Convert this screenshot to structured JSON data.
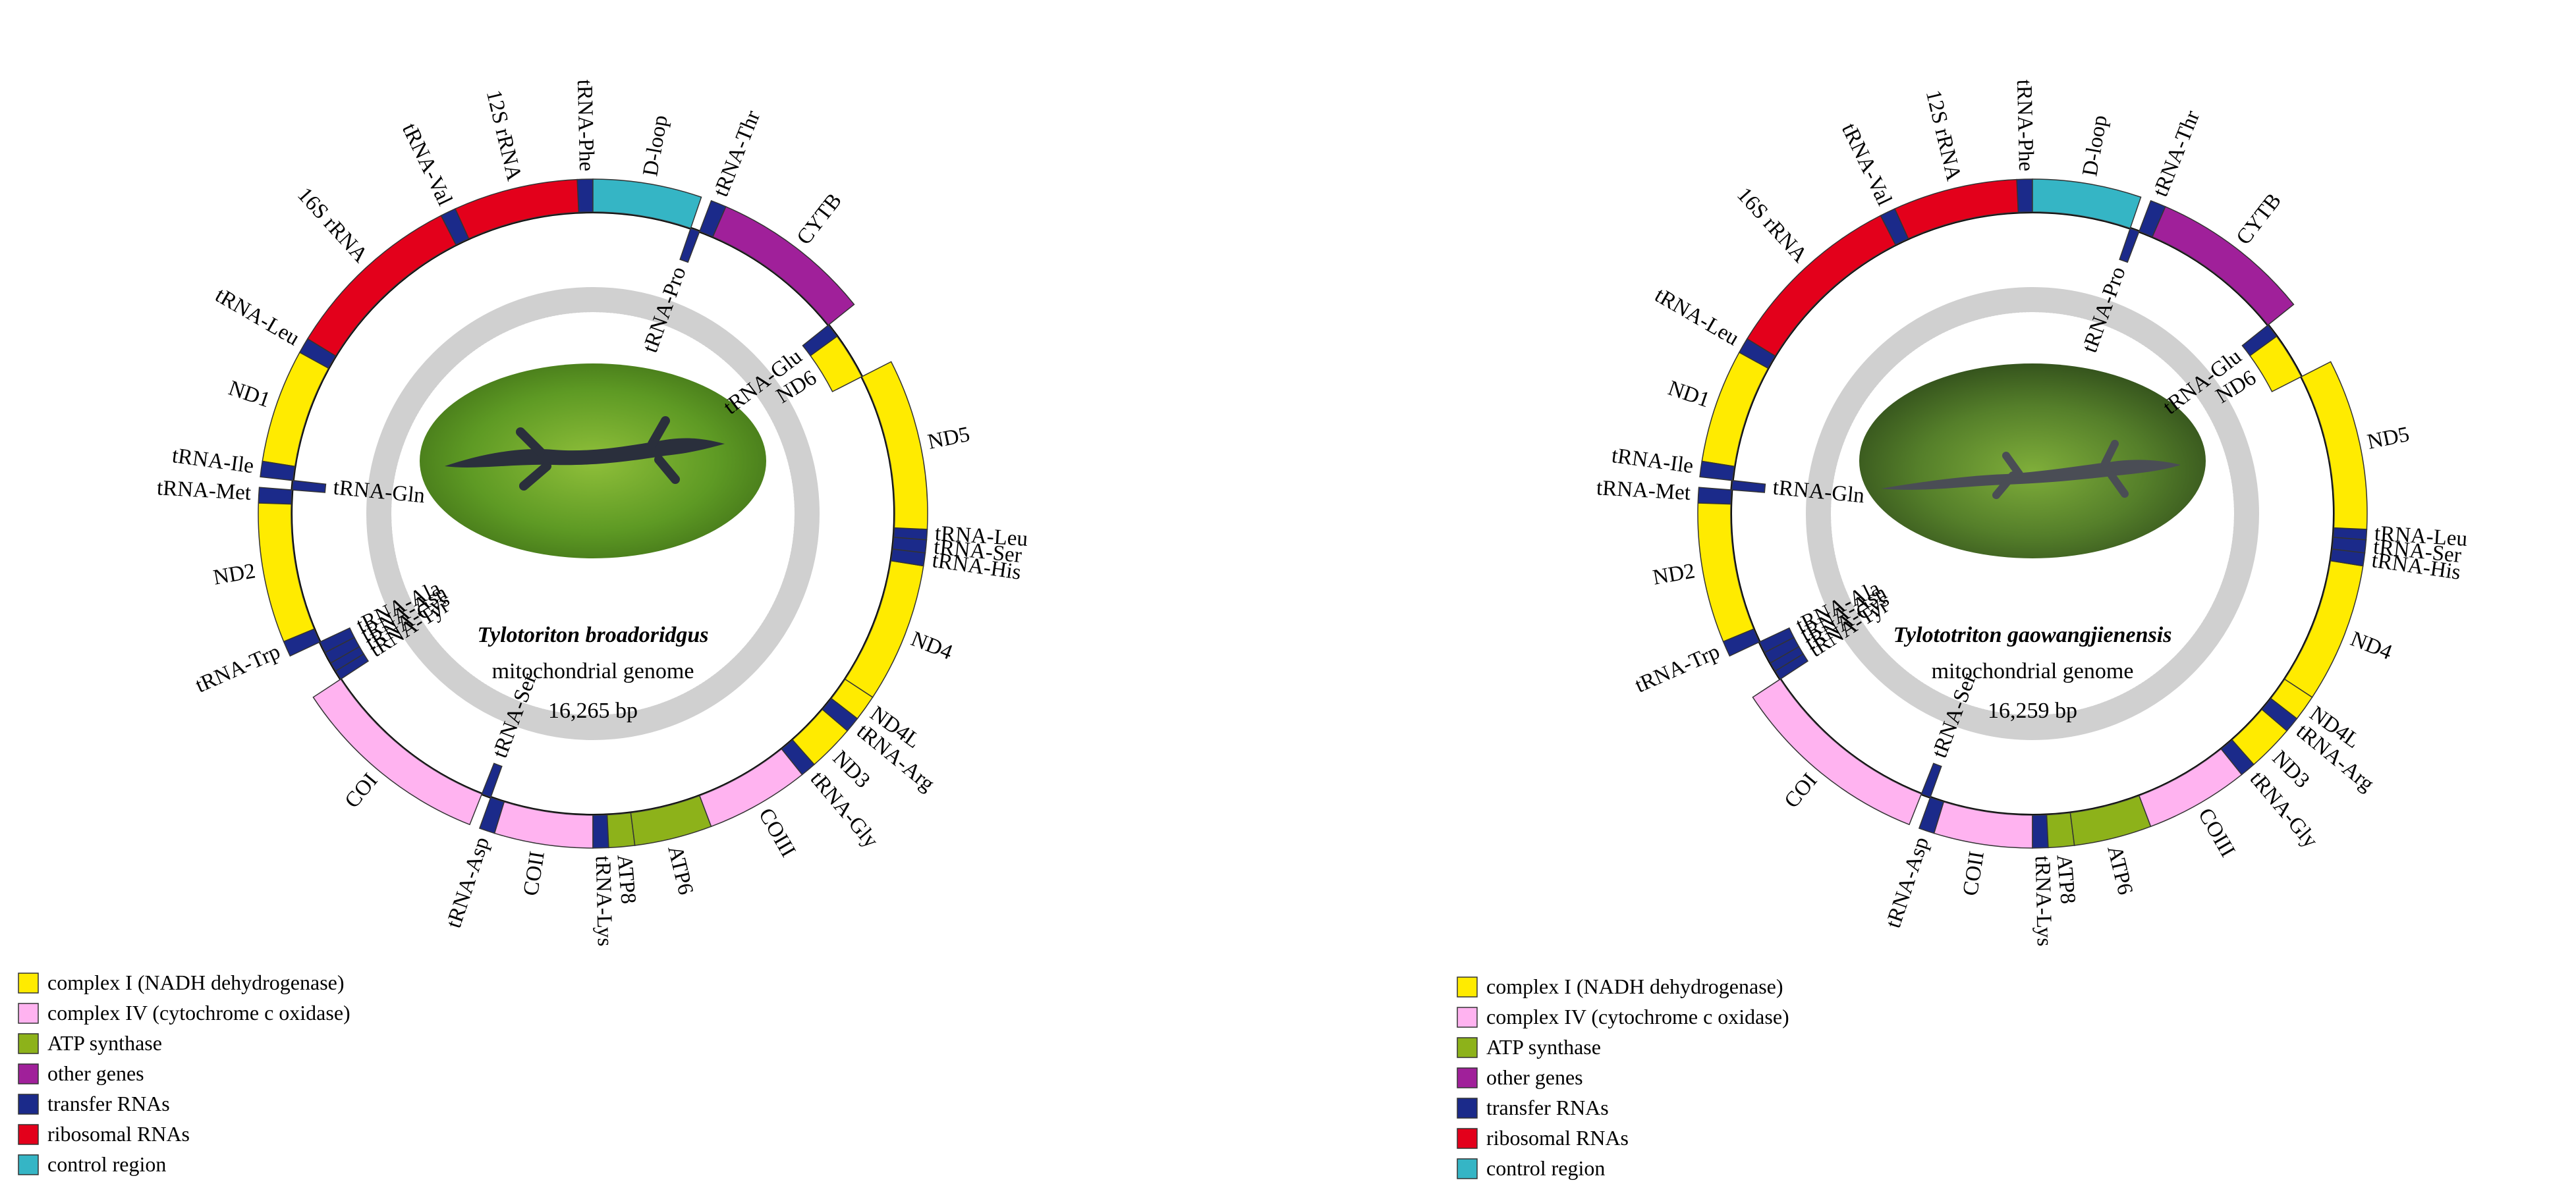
{
  "colors": {
    "complex_I": "#FFEB00",
    "complex_IV": "#FFB3F0",
    "atp": "#8DB21A",
    "other": "#A0209A",
    "trna": "#1B2A8A",
    "rrna": "#E3001B",
    "control": "#35B5C5"
  },
  "legend": [
    {
      "key": "complex_I",
      "label": "complex I (NADH dehydrogenase)"
    },
    {
      "key": "complex_IV",
      "label": "complex IV (cytochrome c oxidase)"
    },
    {
      "key": "atp",
      "label": "ATP synthase"
    },
    {
      "key": "other",
      "label": "other genes"
    },
    {
      "key": "trna",
      "label": "transfer RNAs"
    },
    {
      "key": "rrna",
      "label": "ribosomal RNAs"
    },
    {
      "key": "control",
      "label": "control region"
    }
  ],
  "genomes": [
    {
      "species": "Tylotoriton broadoridgus",
      "subtitle": "mitochondrial genome",
      "size": "16,265 bp",
      "photo_alt": "salamander photo",
      "genes": [
        {
          "name": "tRNA-Phe",
          "start": 0,
          "end": 3,
          "strand": "H",
          "cat": "trna"
        },
        {
          "name": "12S rRNA",
          "start": 3,
          "end": 27,
          "strand": "H",
          "cat": "rrna"
        },
        {
          "name": "tRNA-Val",
          "start": 27,
          "end": 30,
          "strand": "H",
          "cat": "trna"
        },
        {
          "name": "16S rRNA",
          "start": 30,
          "end": 65,
          "strand": "H",
          "cat": "rrna"
        },
        {
          "name": "tRNA-Leu",
          "start": 65,
          "end": 68,
          "strand": "H",
          "cat": "trna"
        },
        {
          "name": "ND1",
          "start": 68,
          "end": 90,
          "strand": "H",
          "cat": "complex_I"
        },
        {
          "name": "tRNA-Ile",
          "start": 90,
          "end": 93,
          "strand": "H",
          "cat": "trna"
        },
        {
          "name": "tRNA-Gln",
          "start": 93,
          "end": 95,
          "strand": "L",
          "cat": "trna"
        },
        {
          "name": "tRNA-Met",
          "start": 95,
          "end": 98,
          "strand": "H",
          "cat": "trna"
        },
        {
          "name": "ND2",
          "start": 98,
          "end": 125,
          "strand": "H",
          "cat": "complex_I"
        },
        {
          "name": "tRNA-Trp",
          "start": 125,
          "end": 128,
          "strand": "H",
          "cat": "trna"
        },
        {
          "name": "tRNA-Ala",
          "start": 128,
          "end": 130.5,
          "strand": "L",
          "cat": "trna"
        },
        {
          "name": "tRNA-Asn",
          "start": 130.5,
          "end": 133,
          "strand": "L",
          "cat": "trna"
        },
        {
          "name": "tRNA-Cys",
          "start": 133,
          "end": 135,
          "strand": "L",
          "cat": "trna"
        },
        {
          "name": "tRNA-Tyr",
          "start": 135,
          "end": 137,
          "strand": "L",
          "cat": "trna"
        },
        {
          "name": "COI",
          "start": 137,
          "end": 176,
          "strand": "H",
          "cat": "complex_IV"
        },
        {
          "name": "tRNA-Ser",
          "start": 176,
          "end": 178,
          "strand": "L",
          "cat": "trna"
        },
        {
          "name": "tRNA-Asp",
          "start": 178,
          "end": 181,
          "strand": "H",
          "cat": "trna"
        },
        {
          "name": "COII",
          "start": 181,
          "end": 200,
          "strand": "H",
          "cat": "complex_IV"
        },
        {
          "name": "tRNA-Lys",
          "start": 200,
          "end": 203,
          "strand": "H",
          "cat": "trna"
        },
        {
          "name": "ATP8",
          "start": 203,
          "end": 208,
          "strand": "H",
          "cat": "atp"
        },
        {
          "name": "ATP6",
          "start": 208,
          "end": 223,
          "strand": "H",
          "cat": "atp"
        },
        {
          "name": "COIII",
          "start": 223,
          "end": 243,
          "strand": "H",
          "cat": "complex_IV"
        },
        {
          "name": "tRNA-Gly",
          "start": 243,
          "end": 246,
          "strand": "H",
          "cat": "trna"
        },
        {
          "name": "ND3",
          "start": 246,
          "end": 255,
          "strand": "H",
          "cat": "complex_I"
        },
        {
          "name": "tRNA-Arg",
          "start": 255,
          "end": 258,
          "strand": "H",
          "cat": "trna"
        },
        {
          "name": "ND4L",
          "start": 258,
          "end": 263,
          "strand": "H",
          "cat": "complex_I"
        },
        {
          "name": "ND4",
          "start": 263,
          "end": 290,
          "strand": "H",
          "cat": "complex_I"
        },
        {
          "name": "tRNA-His",
          "start": 290,
          "end": 292.5,
          "strand": "H",
          "cat": "trna"
        },
        {
          "name": "tRNA-Ser",
          "start": 292.5,
          "end": 295,
          "strand": "H",
          "cat": "trna"
        },
        {
          "name": "tRNA-Leu",
          "start": 295,
          "end": 297,
          "strand": "H",
          "cat": "trna"
        },
        {
          "name": "ND5",
          "start": 297,
          "end": 330,
          "strand": "H",
          "cat": "complex_I"
        },
        {
          "name": "ND6",
          "start": 330,
          "end": 340,
          "strand": "L",
          "cat": "complex_I"
        },
        {
          "name": "tRNA-Glu",
          "start": 340,
          "end": 343,
          "strand": "L",
          "cat": "trna"
        },
        {
          "name": "CYTB",
          "start": 343,
          "end": 374,
          "strand": "H",
          "cat": "other"
        },
        {
          "name": "tRNA-Thr",
          "start": 374,
          "end": 377,
          "strand": "H",
          "cat": "trna"
        },
        {
          "name": "tRNA-Pro",
          "start": 377,
          "end": 379,
          "strand": "L",
          "cat": "trna"
        },
        {
          "name": "D-loop",
          "start": 379,
          "end": 400,
          "strand": "H",
          "cat": "control"
        }
      ],
      "labels": [
        {
          "text": "tRNA-Phe",
          "pos": 1.5,
          "side": "out"
        },
        {
          "text": "12S rRNA",
          "pos": 15,
          "side": "out"
        },
        {
          "text": "tRNA-Val",
          "pos": 28.5,
          "side": "out"
        },
        {
          "text": "16S rRNA",
          "pos": 47,
          "side": "out"
        },
        {
          "text": "tRNA-Leu",
          "pos": 66.5,
          "side": "out"
        },
        {
          "text": "ND1",
          "pos": 79,
          "side": "out"
        },
        {
          "text": "tRNA-Ile",
          "pos": 91.5,
          "side": "out"
        },
        {
          "text": "tRNA-Gln",
          "pos": 94,
          "side": "in"
        },
        {
          "text": "tRNA-Met",
          "pos": 96.5,
          "side": "out"
        },
        {
          "text": "ND2",
          "pos": 111,
          "side": "out"
        },
        {
          "text": "tRNA-Trp",
          "pos": 126.5,
          "side": "out"
        },
        {
          "text": "tRNA-Ala",
          "pos": 129,
          "side": "in"
        },
        {
          "text": "tRNA-Asn",
          "pos": 131.5,
          "side": "in"
        },
        {
          "text": "tRNA-Cys",
          "pos": 134,
          "side": "in"
        },
        {
          "text": "tRNA-Tyr",
          "pos": 136,
          "side": "in"
        },
        {
          "text": "COI",
          "pos": 156,
          "side": "out"
        },
        {
          "text": "tRNA-Ser",
          "pos": 177,
          "side": "in"
        },
        {
          "text": "tRNA-Asp",
          "pos": 179.5,
          "side": "out"
        },
        {
          "text": "COII",
          "pos": 190,
          "side": "out"
        },
        {
          "text": "tRNA-Lys",
          "pos": 201.5,
          "side": "out"
        },
        {
          "text": "ATP8",
          "pos": 205.5,
          "side": "out"
        },
        {
          "text": "ATP6",
          "pos": 215,
          "side": "out"
        },
        {
          "text": "COIII",
          "pos": 233,
          "side": "out"
        },
        {
          "text": "tRNA-Gly",
          "pos": 244.5,
          "side": "out"
        },
        {
          "text": "ND3",
          "pos": 250,
          "side": "out"
        },
        {
          "text": "tRNA-Arg",
          "pos": 256.5,
          "side": "out"
        },
        {
          "text": "ND4L",
          "pos": 260.5,
          "side": "out"
        },
        {
          "text": "ND4",
          "pos": 276,
          "side": "out"
        },
        {
          "text": "tRNA-His",
          "pos": 291,
          "side": "out"
        },
        {
          "text": "tRNA-Ser",
          "pos": 293.5,
          "side": "out"
        },
        {
          "text": "tRNA-Leu",
          "pos": 296,
          "side": "out"
        },
        {
          "text": "ND5",
          "pos": 313,
          "side": "out"
        },
        {
          "text": "ND6",
          "pos": 335,
          "side": "in"
        },
        {
          "text": "tRNA-Glu",
          "pos": 341.5,
          "side": "in"
        },
        {
          "text": "CYTB",
          "pos": 358,
          "side": "out"
        },
        {
          "text": "tRNA-Thr",
          "pos": 375.5,
          "side": "out"
        },
        {
          "text": "tRNA-Pro",
          "pos": 378,
          "side": "in"
        },
        {
          "text": "D-loop",
          "pos": 389,
          "side": "out"
        }
      ]
    },
    {
      "species": "Tylototriton gaowangjienensis",
      "subtitle": "mitochondrial genome",
      "size": "16,259 bp",
      "photo_alt": "salamander photo",
      "genes": [
        {
          "name": "tRNA-Phe",
          "start": 0,
          "end": 3,
          "strand": "H",
          "cat": "trna"
        },
        {
          "name": "12S rRNA",
          "start": 3,
          "end": 27,
          "strand": "H",
          "cat": "rrna"
        },
        {
          "name": "tRNA-Val",
          "start": 27,
          "end": 30,
          "strand": "H",
          "cat": "trna"
        },
        {
          "name": "16S rRNA",
          "start": 30,
          "end": 65,
          "strand": "H",
          "cat": "rrna"
        },
        {
          "name": "tRNA-Leu",
          "start": 65,
          "end": 68,
          "strand": "H",
          "cat": "trna"
        },
        {
          "name": "ND1",
          "start": 68,
          "end": 90,
          "strand": "H",
          "cat": "complex_I"
        },
        {
          "name": "tRNA-Ile",
          "start": 90,
          "end": 93,
          "strand": "H",
          "cat": "trna"
        },
        {
          "name": "tRNA-Gln",
          "start": 93,
          "end": 95,
          "strand": "L",
          "cat": "trna"
        },
        {
          "name": "tRNA-Met",
          "start": 95,
          "end": 98,
          "strand": "H",
          "cat": "trna"
        },
        {
          "name": "ND2",
          "start": 98,
          "end": 125,
          "strand": "H",
          "cat": "complex_I"
        },
        {
          "name": "tRNA-Trp",
          "start": 125,
          "end": 128,
          "strand": "H",
          "cat": "trna"
        },
        {
          "name": "tRNA-Ala",
          "start": 128,
          "end": 130.5,
          "strand": "L",
          "cat": "trna"
        },
        {
          "name": "tRNA-Asn",
          "start": 130.5,
          "end": 133,
          "strand": "L",
          "cat": "trna"
        },
        {
          "name": "tRNA-Cys",
          "start": 133,
          "end": 135,
          "strand": "L",
          "cat": "trna"
        },
        {
          "name": "tRNA-Tyr",
          "start": 135,
          "end": 137,
          "strand": "L",
          "cat": "trna"
        },
        {
          "name": "COI",
          "start": 137,
          "end": 176,
          "strand": "H",
          "cat": "complex_IV"
        },
        {
          "name": "tRNA-Ser",
          "start": 176,
          "end": 178,
          "strand": "L",
          "cat": "trna"
        },
        {
          "name": "tRNA-Asp",
          "start": 178,
          "end": 181,
          "strand": "H",
          "cat": "trna"
        },
        {
          "name": "COII",
          "start": 181,
          "end": 200,
          "strand": "H",
          "cat": "complex_IV"
        },
        {
          "name": "tRNA-Lys",
          "start": 200,
          "end": 203,
          "strand": "H",
          "cat": "trna"
        },
        {
          "name": "ATP8",
          "start": 203,
          "end": 208,
          "strand": "H",
          "cat": "atp"
        },
        {
          "name": "ATP6",
          "start": 208,
          "end": 223,
          "strand": "H",
          "cat": "atp"
        },
        {
          "name": "COIII",
          "start": 223,
          "end": 243,
          "strand": "H",
          "cat": "complex_IV"
        },
        {
          "name": "tRNA-Gly",
          "start": 243,
          "end": 246,
          "strand": "H",
          "cat": "trna"
        },
        {
          "name": "ND3",
          "start": 246,
          "end": 255,
          "strand": "H",
          "cat": "complex_I"
        },
        {
          "name": "tRNA-Arg",
          "start": 255,
          "end": 258,
          "strand": "H",
          "cat": "trna"
        },
        {
          "name": "ND4L",
          "start": 258,
          "end": 263,
          "strand": "H",
          "cat": "complex_I"
        },
        {
          "name": "ND4",
          "start": 263,
          "end": 290,
          "strand": "H",
          "cat": "complex_I"
        },
        {
          "name": "tRNA-His",
          "start": 290,
          "end": 292.5,
          "strand": "H",
          "cat": "trna"
        },
        {
          "name": "tRNA-Ser",
          "start": 292.5,
          "end": 295,
          "strand": "H",
          "cat": "trna"
        },
        {
          "name": "tRNA-Leu",
          "start": 295,
          "end": 297,
          "strand": "H",
          "cat": "trna"
        },
        {
          "name": "ND5",
          "start": 297,
          "end": 330,
          "strand": "H",
          "cat": "complex_I"
        },
        {
          "name": "ND6",
          "start": 330,
          "end": 340,
          "strand": "L",
          "cat": "complex_I"
        },
        {
          "name": "tRNA-Glu",
          "start": 340,
          "end": 343,
          "strand": "L",
          "cat": "trna"
        },
        {
          "name": "CYTB",
          "start": 343,
          "end": 374,
          "strand": "H",
          "cat": "other"
        },
        {
          "name": "tRNA-Thr",
          "start": 374,
          "end": 377,
          "strand": "H",
          "cat": "trna"
        },
        {
          "name": "tRNA-Pro",
          "start": 377,
          "end": 379,
          "strand": "L",
          "cat": "trna"
        },
        {
          "name": "D-loop",
          "start": 379,
          "end": 400,
          "strand": "H",
          "cat": "control"
        }
      ],
      "labels": [
        {
          "text": "tRNA-Phe",
          "pos": 1.5,
          "side": "out"
        },
        {
          "text": "12S rRNA",
          "pos": 15,
          "side": "out"
        },
        {
          "text": "tRNA-Val",
          "pos": 28.5,
          "side": "out"
        },
        {
          "text": "16S rRNA",
          "pos": 47,
          "side": "out"
        },
        {
          "text": "tRNA-Leu",
          "pos": 66.5,
          "side": "out"
        },
        {
          "text": "ND1",
          "pos": 79,
          "side": "out"
        },
        {
          "text": "tRNA-Ile",
          "pos": 91.5,
          "side": "out"
        },
        {
          "text": "tRNA-Gln",
          "pos": 94,
          "side": "in"
        },
        {
          "text": "tRNA-Met",
          "pos": 96.5,
          "side": "out"
        },
        {
          "text": "ND2",
          "pos": 111,
          "side": "out"
        },
        {
          "text": "tRNA-Trp",
          "pos": 126.5,
          "side": "out"
        },
        {
          "text": "tRNA-Ala",
          "pos": 129,
          "side": "in"
        },
        {
          "text": "tRNA-Asn",
          "pos": 131.5,
          "side": "in"
        },
        {
          "text": "tRNA-Cys",
          "pos": 134,
          "side": "in"
        },
        {
          "text": "tRNA-Tyr",
          "pos": 136,
          "side": "in"
        },
        {
          "text": "COI",
          "pos": 156,
          "side": "out"
        },
        {
          "text": "tRNA-Ser",
          "pos": 177,
          "side": "in"
        },
        {
          "text": "tRNA-Asp",
          "pos": 179.5,
          "side": "out"
        },
        {
          "text": "COII",
          "pos": 190,
          "side": "out"
        },
        {
          "text": "tRNA-Lys",
          "pos": 201.5,
          "side": "out"
        },
        {
          "text": "ATP8",
          "pos": 205.5,
          "side": "out"
        },
        {
          "text": "ATP6",
          "pos": 215,
          "side": "out"
        },
        {
          "text": "COIII",
          "pos": 233,
          "side": "out"
        },
        {
          "text": "tRNA-Gly",
          "pos": 244.5,
          "side": "out"
        },
        {
          "text": "ND3",
          "pos": 250,
          "side": "out"
        },
        {
          "text": "tRNA-Arg",
          "pos": 256.5,
          "side": "out"
        },
        {
          "text": "ND4L",
          "pos": 260.5,
          "side": "out"
        },
        {
          "text": "ND4",
          "pos": 276,
          "side": "out"
        },
        {
          "text": "tRNA-His",
          "pos": 291,
          "side": "out"
        },
        {
          "text": "tRNA-Ser",
          "pos": 293.5,
          "side": "out"
        },
        {
          "text": "tRNA-Leu",
          "pos": 296,
          "side": "out"
        },
        {
          "text": "ND5",
          "pos": 313,
          "side": "out"
        },
        {
          "text": "ND6",
          "pos": 335,
          "side": "in"
        },
        {
          "text": "tRNA-Glu",
          "pos": 341.5,
          "side": "in"
        },
        {
          "text": "CYTB",
          "pos": 358,
          "side": "out"
        },
        {
          "text": "tRNA-Thr",
          "pos": 375.5,
          "side": "out"
        },
        {
          "text": "tRNA-Pro",
          "pos": 378,
          "side": "in"
        },
        {
          "text": "D-loop",
          "pos": 389,
          "side": "out"
        }
      ]
    }
  ]
}
